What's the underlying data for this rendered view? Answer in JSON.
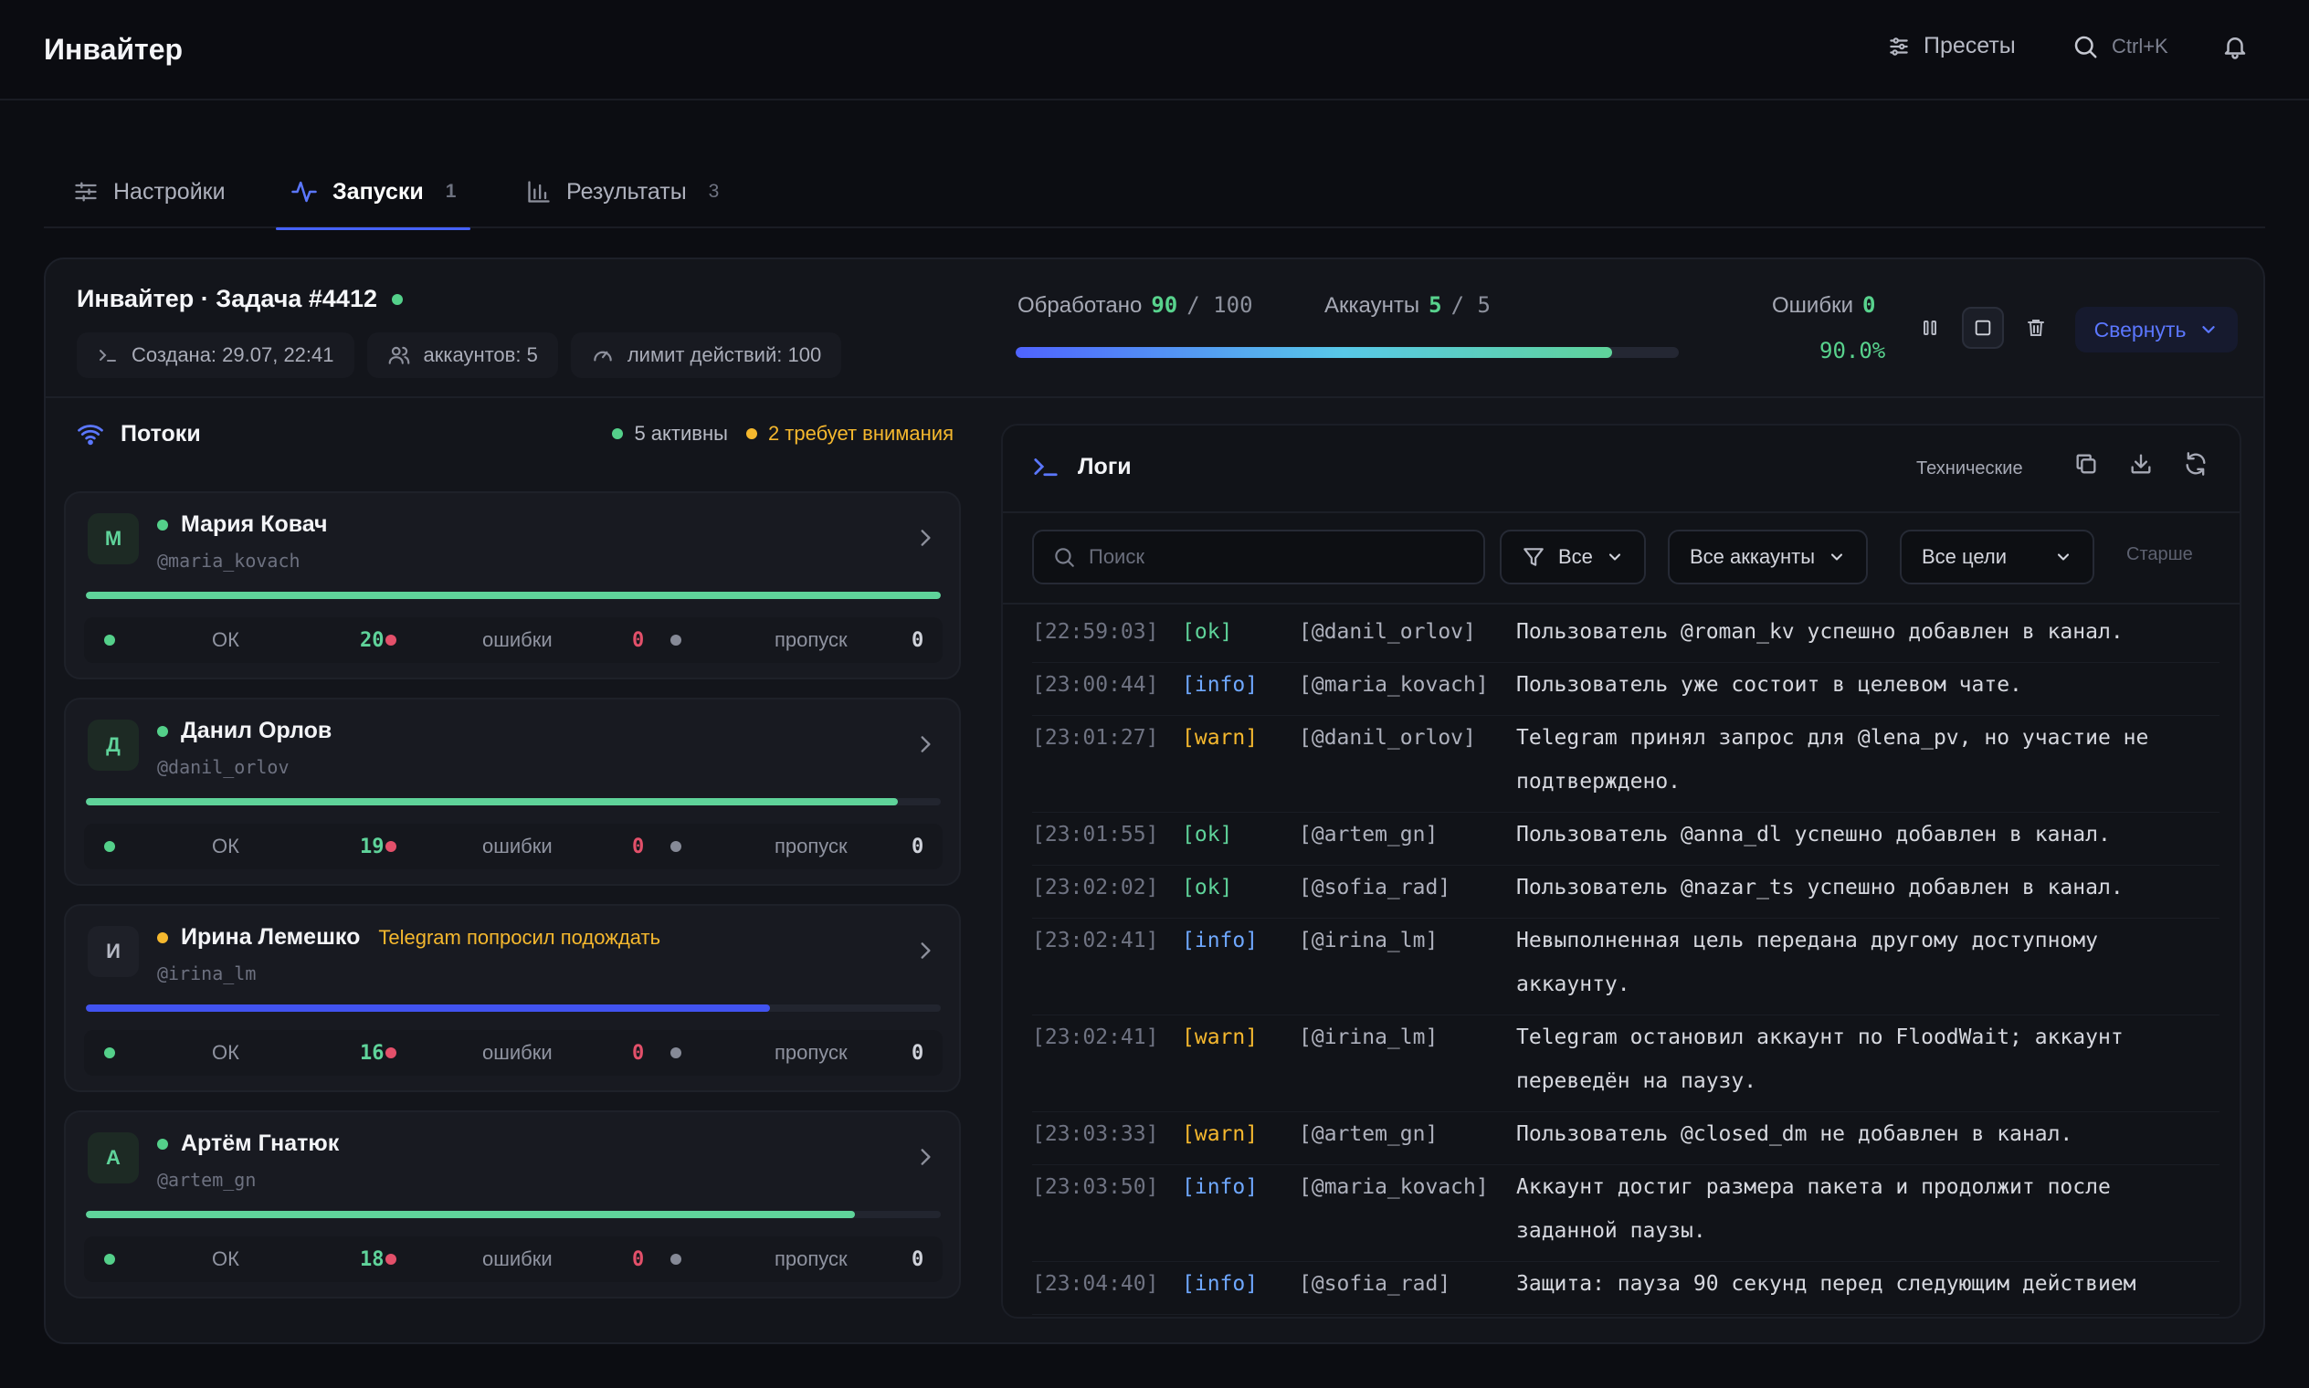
{
  "app": {
    "title": "Инвайтер"
  },
  "topbar": {
    "presets_label": "Пресеты",
    "search_shortcut": "Ctrl+K"
  },
  "tabs": [
    {
      "label": "Настройки",
      "count": ""
    },
    {
      "label": "Запуски",
      "count": "1"
    },
    {
      "label": "Результаты",
      "count": "3"
    }
  ],
  "job": {
    "title": "Инвайтер · Задача #4412",
    "created": "Создана: 29.07, 22:41",
    "accounts": "аккаунтов: 5",
    "limit": "лимит действий: 100",
    "processed_label": "Обработано",
    "processed_value": "90",
    "processed_total": "/ 100",
    "processed_fraction": 0.9,
    "accounts_label": "Аккаунты",
    "accounts_value": "5",
    "accounts_total": "/ 5",
    "errors_label": "Ошибки",
    "errors_value": "0",
    "percent": "90.0%",
    "collapse_label": "Свернуть"
  },
  "streams": {
    "title": "Потоки",
    "active": "5 активны",
    "attention": "2 требует внимания",
    "stat_labels": {
      "ok": "ОК",
      "errors": "ошибки",
      "skip": "пропуск"
    },
    "items": [
      {
        "initial": "М",
        "name": "Мария Ковач",
        "handle": "@maria_kovach",
        "note": "",
        "status": "ok",
        "progress": 1.0,
        "ok": "20",
        "errors": "0",
        "skip": "0"
      },
      {
        "initial": "Д",
        "name": "Данил Орлов",
        "handle": "@danil_orlov",
        "note": "",
        "status": "ok",
        "progress": 0.95,
        "ok": "19",
        "errors": "0",
        "skip": "0"
      },
      {
        "initial": "И",
        "name": "Ирина Лемешко",
        "handle": "@irina_lm",
        "note": "Telegram попросил подождать",
        "status": "warn",
        "progress": 0.8,
        "ok": "16",
        "errors": "0",
        "skip": "0"
      },
      {
        "initial": "А",
        "name": "Артём Гнатюк",
        "handle": "@artem_gn",
        "note": "",
        "status": "ok",
        "progress": 0.9,
        "ok": "18",
        "errors": "0",
        "skip": "0"
      }
    ]
  },
  "logs": {
    "title": "Логи",
    "tech_label": "Технические",
    "search_placeholder": "Поиск",
    "filter_level": "Все",
    "filter_accounts": "Все аккаунты",
    "filter_targets": "Все цели",
    "older_label": "Старше",
    "rows": [
      {
        "time": "[22:59:03]",
        "level": "[ok]",
        "kind": "ok",
        "account": "[@danil_orlov]",
        "lines": [
          "Пользователь @roman_kv успешно добавлен в канал."
        ]
      },
      {
        "time": "[23:00:44]",
        "level": "[info]",
        "kind": "info",
        "account": "[@maria_kovach]",
        "lines": [
          "Пользователь уже состоит в целевом чате."
        ]
      },
      {
        "time": "[23:01:27]",
        "level": "[warn]",
        "kind": "warn",
        "account": "[@danil_orlov]",
        "lines": [
          "Telegram принял запрос для @lena_pv, но участие не",
          "подтверждено."
        ]
      },
      {
        "time": "[23:01:55]",
        "level": "[ok]",
        "kind": "ok",
        "account": "[@artem_gn]",
        "lines": [
          "Пользователь @anna_dl успешно добавлен в канал."
        ]
      },
      {
        "time": "[23:02:02]",
        "level": "[ok]",
        "kind": "ok",
        "account": "[@sofia_rad]",
        "lines": [
          "Пользователь @nazar_ts успешно добавлен в канал."
        ]
      },
      {
        "time": "[23:02:41]",
        "level": "[info]",
        "kind": "info",
        "account": "[@irina_lm]",
        "lines": [
          "Невыполненная цель передана другому доступному",
          "аккаунту."
        ]
      },
      {
        "time": "[23:02:41]",
        "level": "[warn]",
        "kind": "warn",
        "account": "[@irina_lm]",
        "lines": [
          "Telegram остановил аккаунт по FloodWait; аккаунт",
          "переведён на паузу."
        ]
      },
      {
        "time": "[23:03:33]",
        "level": "[warn]",
        "kind": "warn",
        "account": "[@artem_gn]",
        "lines": [
          "Пользователь @closed_dm не добавлен в канал."
        ]
      },
      {
        "time": "[23:03:50]",
        "level": "[info]",
        "kind": "info",
        "account": "[@maria_kovach]",
        "lines": [
          "Аккаунт достиг размера пакета и продолжит после",
          "заданной паузы."
        ]
      },
      {
        "time": "[23:04:40]",
        "level": "[info]",
        "kind": "info",
        "account": "[@sofia_rad]",
        "lines": [
          "Защита: пауза 90 секунд перед следующим действием"
        ]
      }
    ]
  },
  "colors": {
    "accent": "#4562ff",
    "ok": "#5fd39a",
    "warn": "#f5b82e",
    "error": "#e3506a",
    "info": "#6fa8ff"
  }
}
